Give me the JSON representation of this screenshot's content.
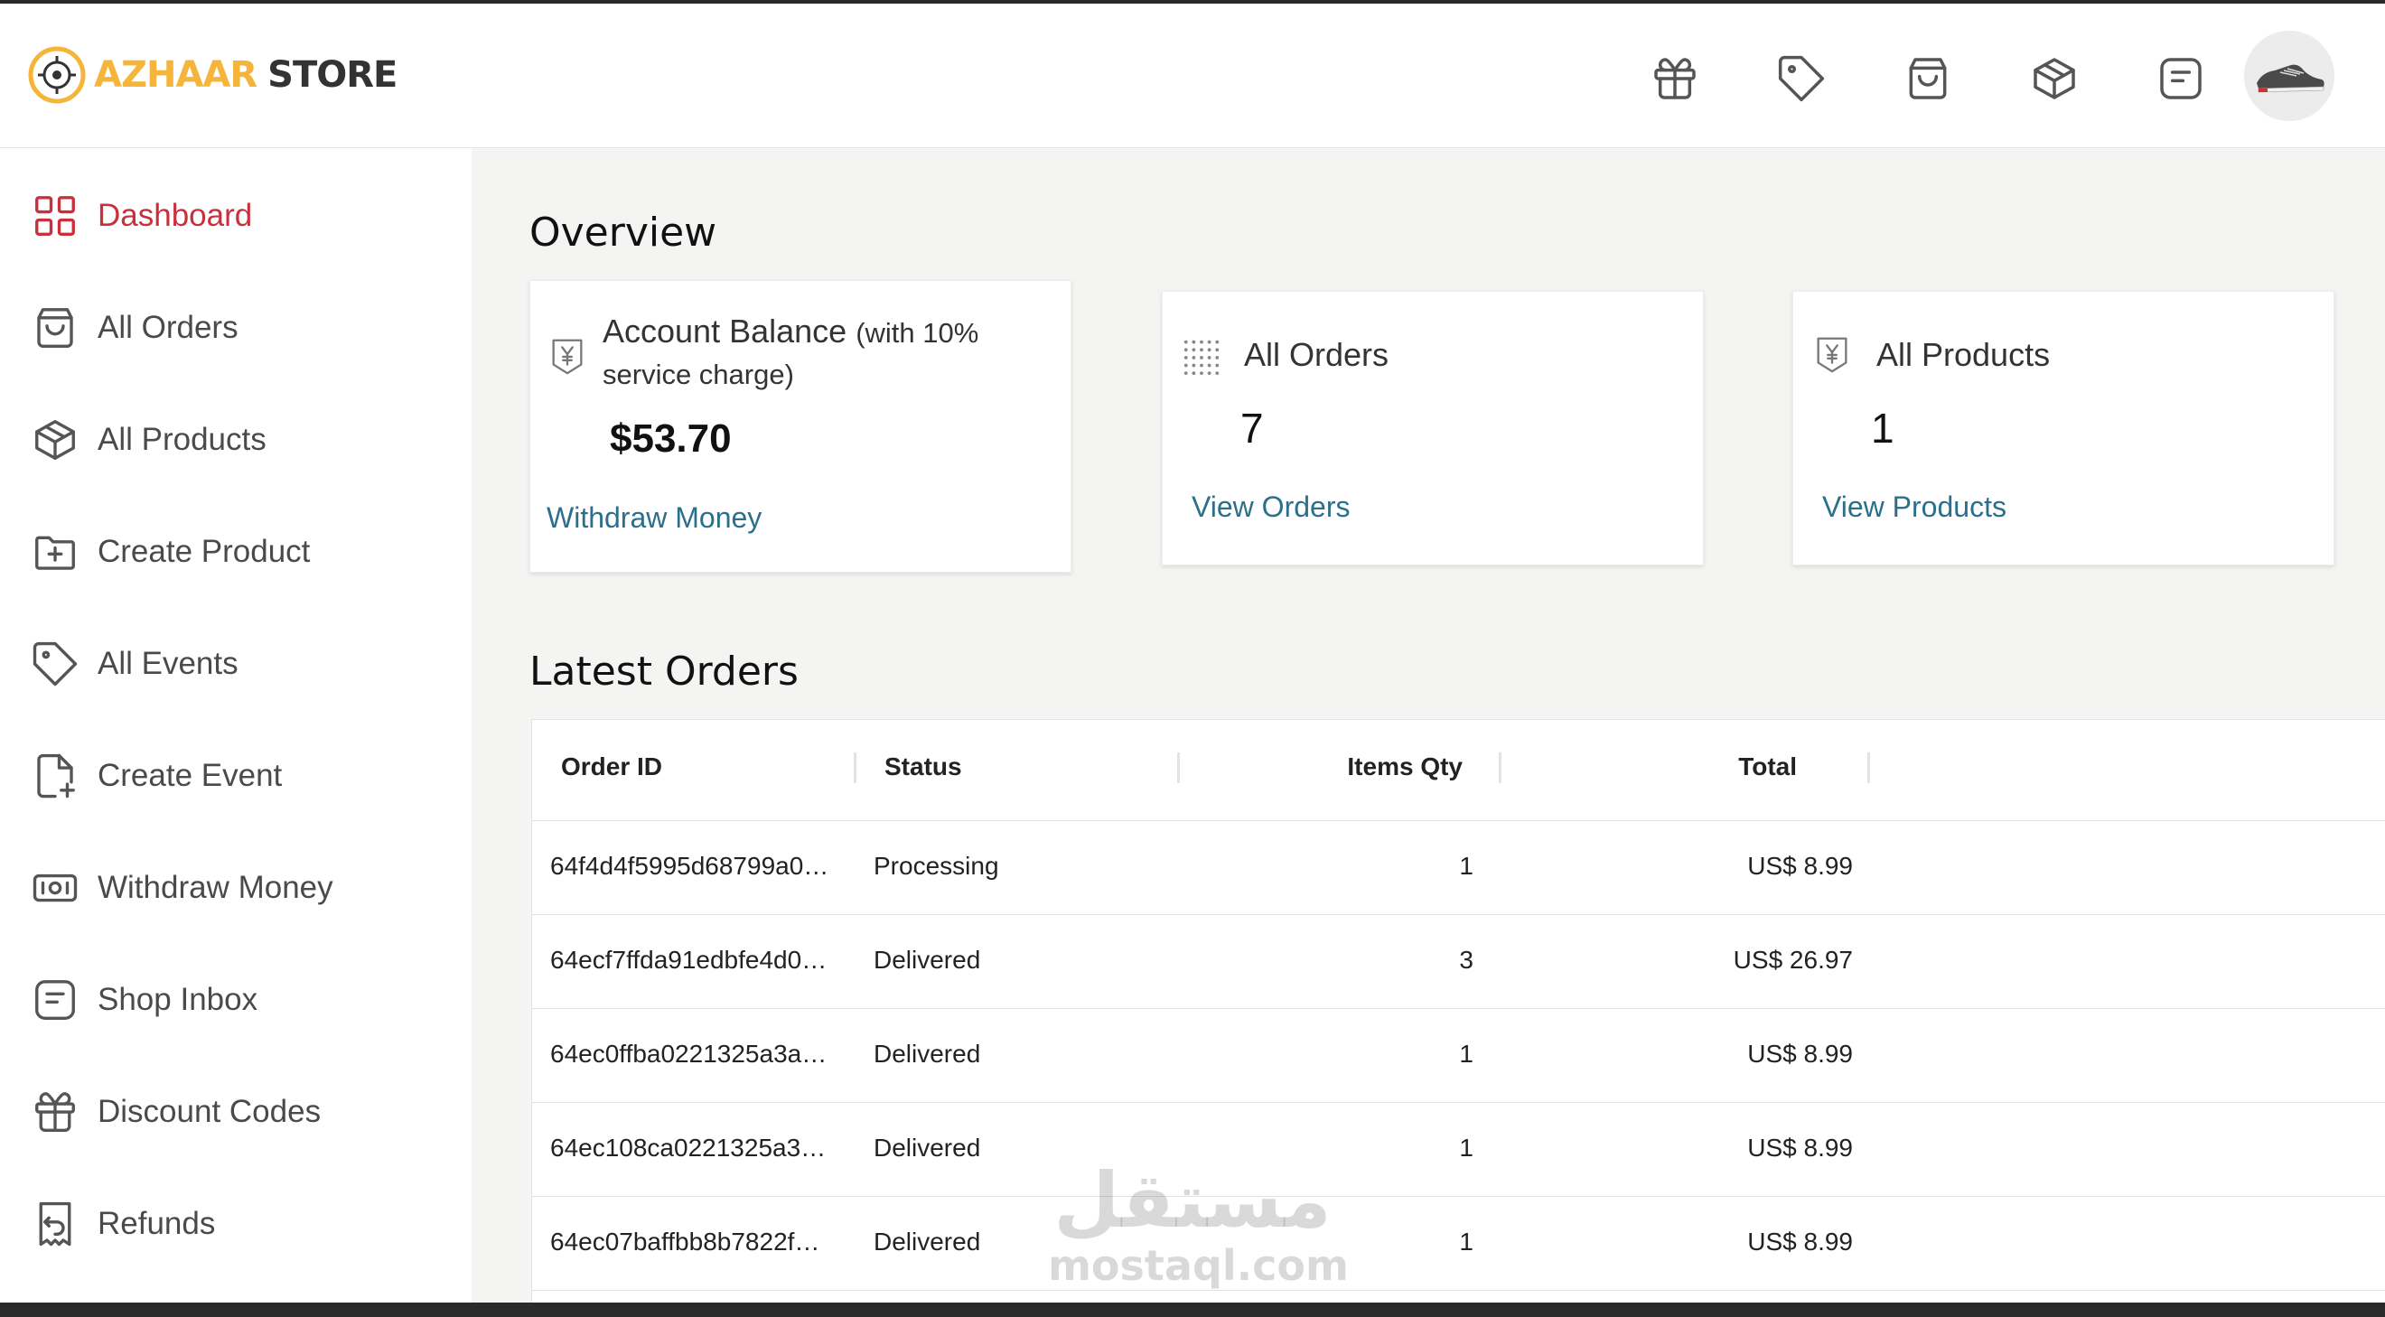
{
  "brand": {
    "name_part1": "AZHAAR",
    "name_part2": "STORE",
    "accent": "#f5b53b"
  },
  "header": {
    "icons": [
      "gift-icon",
      "tag-icon",
      "shopping-bag-icon",
      "package-icon",
      "message-icon"
    ]
  },
  "sidebar": {
    "items": [
      {
        "label": "Dashboard",
        "icon": "grid-icon",
        "active": true
      },
      {
        "label": "All Orders",
        "icon": "shopping-bag-icon"
      },
      {
        "label": "All Products",
        "icon": "package-icon"
      },
      {
        "label": "Create Product",
        "icon": "folder-plus-icon"
      },
      {
        "label": "All Events",
        "icon": "tag-icon"
      },
      {
        "label": "Create Event",
        "icon": "file-plus-icon"
      },
      {
        "label": "Withdraw Money",
        "icon": "banknote-icon"
      },
      {
        "label": "Shop Inbox",
        "icon": "message-icon"
      },
      {
        "label": "Discount Codes",
        "icon": "gift-icon"
      },
      {
        "label": "Refunds",
        "icon": "receipt-refund-icon"
      }
    ],
    "active_color": "#c8303e"
  },
  "overview": {
    "title": "Overview",
    "balance": {
      "title": "Account Balance",
      "subtitle": "(with 10% service charge)",
      "value": "$53.70",
      "link": "Withdraw Money"
    },
    "orders": {
      "title": "All Orders",
      "value": "7",
      "link": "View Orders"
    },
    "products": {
      "title": "All Products",
      "value": "1",
      "link": "View Products"
    },
    "link_color": "#2a6f8c"
  },
  "latest_orders": {
    "title": "Latest Orders",
    "columns": [
      "Order ID",
      "Status",
      "Items Qty",
      "Total"
    ],
    "rows": [
      {
        "id": "64f4d4f5995d68799a0…",
        "status": "Processing",
        "qty": "1",
        "total": "US$ 8.99"
      },
      {
        "id": "64ecf7ffda91edbfe4d0…",
        "status": "Delivered",
        "qty": "3",
        "total": "US$ 26.97"
      },
      {
        "id": "64ec0ffba0221325a3a…",
        "status": "Delivered",
        "qty": "1",
        "total": "US$ 8.99"
      },
      {
        "id": "64ec108ca0221325a3…",
        "status": "Delivered",
        "qty": "1",
        "total": "US$ 8.99"
      },
      {
        "id": "64ec07baffbb8b7822f…",
        "status": "Delivered",
        "qty": "1",
        "total": "US$ 8.99"
      }
    ]
  },
  "watermark": {
    "arabic": "مستقل",
    "latin": "mostaql.com"
  }
}
